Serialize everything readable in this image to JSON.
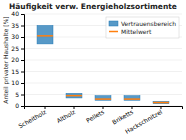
{
  "chart_data": {
    "type": "bar",
    "title": "Häufigkeit verw. Energieholzsortimente",
    "ylabel": "Anteil privater Haushalte [%]",
    "categories": [
      "Scheitholz",
      "Altholz",
      "Pellets",
      "Briketts",
      "Hackschnitzel"
    ],
    "series": [
      {
        "name": "Vertrauensbereich",
        "type": "bar",
        "low": [
          27,
          3.5,
          2.5,
          2.5,
          1.0
        ],
        "high": [
          35,
          5.5,
          4.5,
          4.5,
          2.0
        ]
      },
      {
        "name": "Mittelwert",
        "type": "line",
        "values": [
          30.5,
          4.5,
          3.0,
          3.0,
          1.5
        ]
      }
    ],
    "ylim": [
      0,
      40
    ],
    "yticks": [
      0,
      5,
      10,
      15,
      20,
      25,
      30,
      35,
      40
    ],
    "grid": true,
    "legend": "upper right"
  }
}
